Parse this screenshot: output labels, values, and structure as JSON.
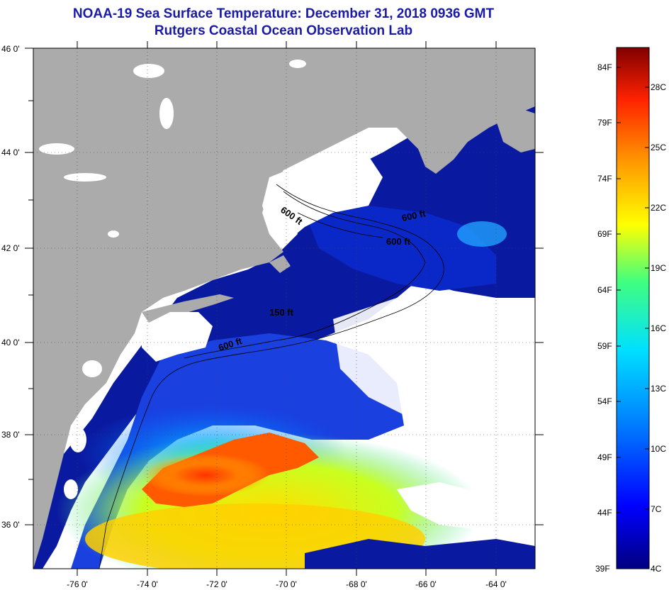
{
  "title": {
    "line1": "NOAA-19 Sea Surface Temperature:  December 31, 2018 0936 GMT",
    "line2": "Rutgers Coastal Ocean Observation Lab"
  },
  "map": {
    "lat_labels": [
      "46 0'",
      "44 0'",
      "42 0'",
      "40 0'",
      "38 0'",
      "36 0'"
    ],
    "lon_labels": [
      "-76 0'",
      "-74 0'",
      "-72 0'",
      "-70 0'",
      "-68 0'",
      "-66 0'",
      "-64 0'"
    ],
    "contour_labels": [
      "600 ft",
      "600 ft",
      "600 ft",
      "150 ft",
      "600 ft"
    ],
    "colors": {
      "land": "#ababab",
      "cloud": "#ffffff",
      "cold": "#000080",
      "warm": "#ff4500"
    }
  },
  "colorbar": {
    "fahrenheit_labels": [
      "84F",
      "79F",
      "74F",
      "69F",
      "64F",
      "59F",
      "54F",
      "49F",
      "44F",
      "39F"
    ],
    "celsius_labels": [
      "28C",
      "25C",
      "22C",
      "19C",
      "16C",
      "13C",
      "10C",
      "7C",
      "4C"
    ],
    "range_f": [
      39,
      86
    ],
    "gradient": [
      "#000080",
      "#0000ff",
      "#0080ff",
      "#00e0ff",
      "#40ff80",
      "#ffff00",
      "#ff9900",
      "#ff2200",
      "#800000"
    ]
  }
}
